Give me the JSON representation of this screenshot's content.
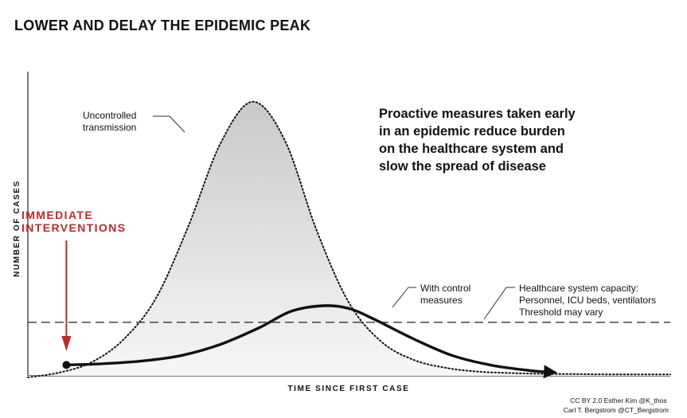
{
  "chart_data": {
    "type": "line",
    "title": "LOWER AND DELAY THE EPIDEMIC PEAK",
    "xlabel": "TIME SINCE FIRST CASE",
    "ylabel": "NUMBER OF CASES",
    "message": [
      "Proactive measures taken early",
      "in an epidemic reduce burden",
      "on the healthcare system and",
      "slow the spread of disease"
    ],
    "series": [
      {
        "name": "Uncontrolled transmission",
        "label_lines": [
          "Uncontrolled",
          "transmission"
        ],
        "style": "dotted",
        "fill": true,
        "x": [
          0,
          5,
          10,
          15,
          20,
          25,
          30,
          35,
          40,
          45,
          50,
          55,
          60,
          65,
          70,
          75,
          80,
          85,
          90,
          95,
          100
        ],
        "y": [
          0,
          1.8,
          5.6,
          14,
          29,
          55,
          85,
          100,
          86,
          53,
          27,
          13,
          6.4,
          3.5,
          2.1,
          1.6,
          1.3,
          1.2,
          1.1,
          1.1,
          1.1
        ]
      },
      {
        "name": "With control measures",
        "label_lines": [
          "With control",
          "measures"
        ],
        "style": "solid",
        "x": [
          6,
          12,
          18,
          24,
          30,
          36,
          41,
          46,
          50,
          54,
          60,
          66,
          72,
          78,
          82
        ],
        "y": [
          4.5,
          5,
          6,
          8,
          12,
          18,
          24,
          26,
          25,
          21,
          14,
          8,
          4.5,
          2.5,
          1.8
        ]
      }
    ],
    "threshold": {
      "value": 20,
      "style": "dashed",
      "label_lines": [
        "Healthcare system capacity:",
        "Personnel, ICU beds, ventilators",
        "Threshold may vary"
      ]
    },
    "intervention": {
      "x": 6,
      "label_lines": [
        "IMMEDIATE",
        "INTERVENTIONS"
      ],
      "color": "#c1272d"
    },
    "xlim": [
      0,
      100
    ],
    "ylim": [
      0,
      104
    ],
    "grid": false,
    "legend": "none"
  },
  "credit": [
    "CC BY 2.0  Esther Kim  @K_thos",
    "Carl T. Bergstrom  @CT_Bergstrom"
  ]
}
